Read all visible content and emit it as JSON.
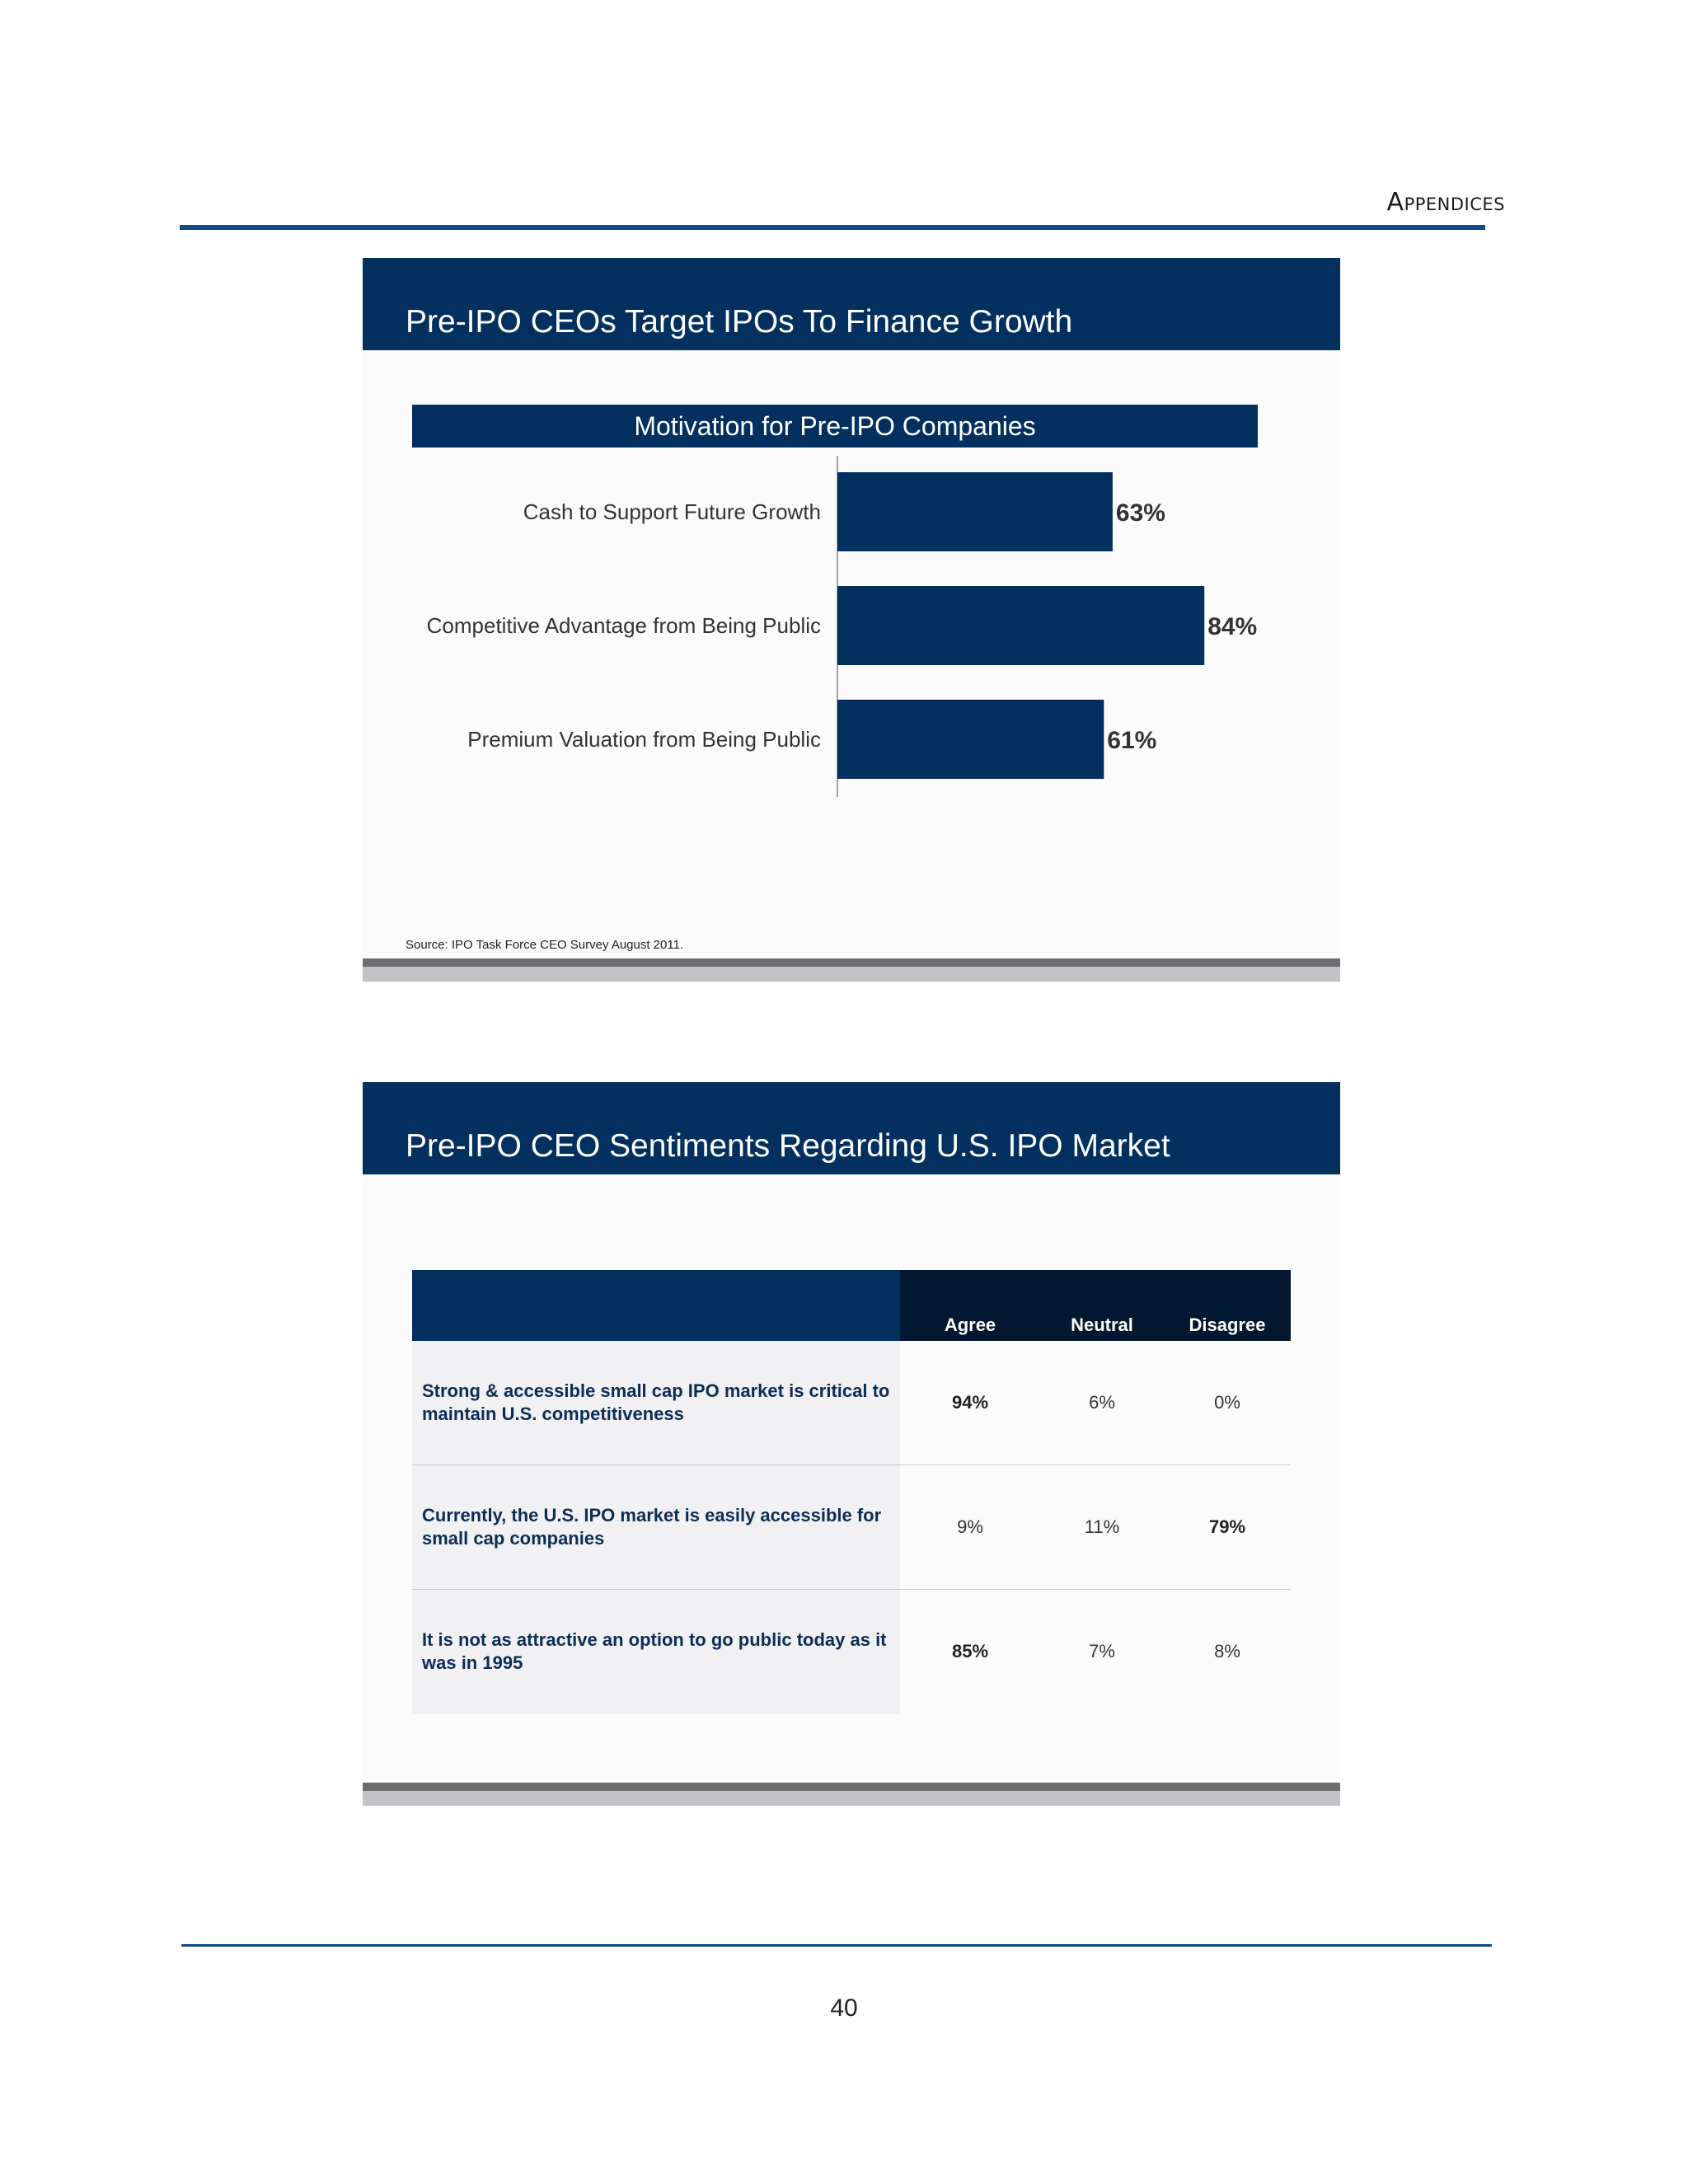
{
  "header": {
    "section_label": "Appendices"
  },
  "page_number": "40",
  "slide1": {
    "title": "Pre-IPO CEOs Target IPOs To Finance Growth",
    "source": "Source: IPO Task Force CEO Survey August 2011."
  },
  "chart_data": {
    "type": "bar",
    "orientation": "horizontal",
    "title": "Motivation for Pre-IPO Companies",
    "categories": [
      "Cash to Support Future Growth",
      "Competitive Advantage from Being Public",
      "Premium Valuation from Being Public"
    ],
    "values": [
      63,
      84,
      61
    ],
    "value_labels": [
      "63%",
      "84%",
      "61%"
    ],
    "xlim": [
      0,
      100
    ],
    "grid": false,
    "bar_color": "#03305f"
  },
  "slide2": {
    "title": "Pre-IPO CEO Sentiments Regarding U.S. IPO Market",
    "table": {
      "columns": [
        "Agree",
        "Neutral",
        "Disagree"
      ],
      "rows": [
        {
          "statement": "Strong & accessible small cap IPO market is critical to maintain U.S. competitiveness",
          "agree": "94%",
          "neutral": "6%",
          "disagree": "0%"
        },
        {
          "statement": "Currently, the U.S. IPO market is easily accessible for small cap companies",
          "agree": "9%",
          "neutral": "11%",
          "disagree": "79%"
        },
        {
          "statement": "It is not as attractive an option to go public today as it was in 1995",
          "agree": "85%",
          "neutral": "7%",
          "disagree": "8%"
        }
      ]
    }
  }
}
